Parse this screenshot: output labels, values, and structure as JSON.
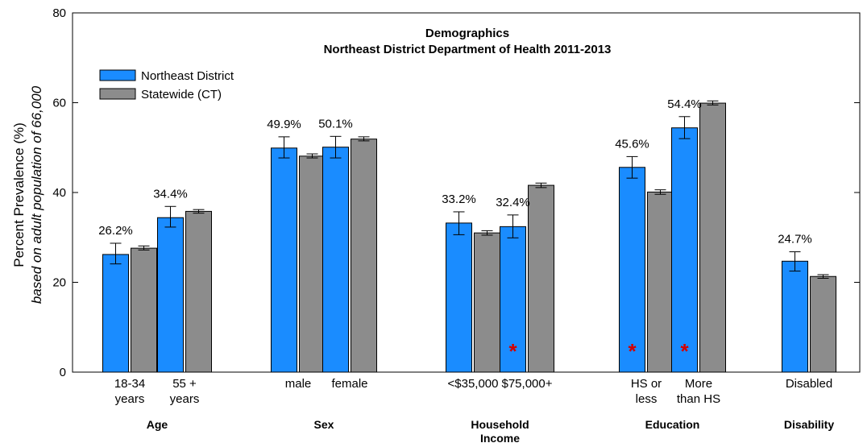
{
  "chart_data": {
    "type": "bar",
    "title": "Demographics",
    "subtitle": "Northeast District Department of Health 2011-2013",
    "ylabel": "Percent Prevalence (%)",
    "ylabel_sub": "based on adult population of 66,000",
    "ylim": [
      0,
      80
    ],
    "yticks": [
      "0",
      "20",
      "40",
      "60",
      "80"
    ],
    "legend_position": "top-left",
    "colors": {
      "district": "#1a8cff",
      "state": "#8c8c8c"
    },
    "series": [
      {
        "name": "Northeast District",
        "values": [
          26.2,
          34.4,
          49.9,
          50.1,
          33.2,
          32.4,
          45.6,
          54.4,
          24.7
        ]
      },
      {
        "name": "Statewide (CT)",
        "values": [
          27.6,
          35.8,
          48.1,
          51.9,
          31.0,
          41.6,
          40.1,
          59.9,
          21.3
        ]
      }
    ],
    "district_errors": [
      [
        24.1,
        28.7
      ],
      [
        32.3,
        36.9
      ],
      [
        47.7,
        52.4
      ],
      [
        47.7,
        52.5
      ],
      [
        30.6,
        35.7
      ],
      [
        29.9,
        35.0
      ],
      [
        43.2,
        48.0
      ],
      [
        52.0,
        56.9
      ],
      [
        22.5,
        26.8
      ]
    ],
    "state_errors": [
      [
        27.2,
        28.1
      ],
      [
        35.4,
        36.2
      ],
      [
        47.7,
        48.6
      ],
      [
        51.5,
        52.4
      ],
      [
        30.5,
        31.5
      ],
      [
        41.1,
        42.1
      ],
      [
        39.6,
        40.6
      ],
      [
        59.5,
        60.4
      ],
      [
        20.9,
        21.7
      ]
    ],
    "value_labels": [
      "26.2%",
      "34.4%",
      "49.9%",
      "50.1%",
      "33.2%",
      "32.4%",
      "45.6%",
      "54.4%",
      "24.7%"
    ],
    "categories": [
      [
        "18-34",
        "years"
      ],
      [
        "55 +",
        "years"
      ],
      [
        "male"
      ],
      [
        "female"
      ],
      [
        "<$35,000"
      ],
      [
        "$75,000+"
      ],
      [
        "HS or",
        "less"
      ],
      [
        "More",
        "than HS"
      ],
      [
        "Disabled"
      ]
    ],
    "groups": [
      {
        "label": [
          "Age"
        ],
        "members": [
          0,
          1
        ]
      },
      {
        "label": [
          "Sex"
        ],
        "members": [
          2,
          3
        ]
      },
      {
        "label": [
          "Household",
          "Income"
        ],
        "members": [
          4,
          5
        ]
      },
      {
        "label": [
          "Education"
        ],
        "members": [
          6,
          7
        ]
      },
      {
        "label": [
          "Disability"
        ],
        "members": [
          8
        ]
      }
    ],
    "significant_markers": [
      5,
      6,
      7
    ],
    "marker_symbol": "*"
  }
}
